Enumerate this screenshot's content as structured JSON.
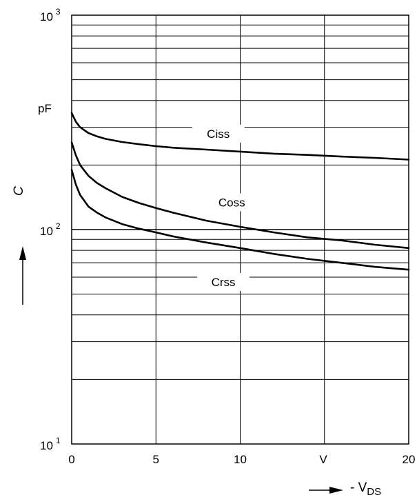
{
  "chart_data": {
    "type": "line",
    "xlabel": "- V",
    "xlabel_sub": "DS",
    "xunit": "V",
    "ylabel": "C",
    "yunit": "pF",
    "yscale": "log",
    "xlim": [
      0,
      20
    ],
    "ylim": [
      10,
      1000
    ],
    "grid": true,
    "legend": "none",
    "x_ticks": [
      "0",
      "5",
      "10",
      "20"
    ],
    "y_ticks": [
      {
        "base": "10",
        "exp": "1"
      },
      {
        "base": "10",
        "exp": "2"
      },
      {
        "base": "10",
        "exp": "3"
      }
    ],
    "series": [
      {
        "name": "Ciss",
        "label_at": [
          8.7,
          280
        ],
        "x": [
          0,
          0.25,
          0.5,
          1,
          1.5,
          2,
          3,
          4,
          5,
          6,
          8,
          10,
          12,
          14,
          16,
          18,
          20
        ],
        "y": [
          350,
          318,
          300,
          282,
          272,
          265,
          256,
          250,
          245,
          241,
          236,
          231,
          226,
          223,
          219,
          216,
          212
        ]
      },
      {
        "name": "Coss",
        "label_at": [
          9.5,
          134
        ],
        "x": [
          0,
          0.25,
          0.5,
          1,
          1.5,
          2,
          3,
          4,
          5,
          6,
          8,
          10,
          12,
          14,
          16,
          18,
          20
        ],
        "y": [
          255,
          222,
          200,
          178,
          165,
          156,
          142,
          133,
          126,
          120,
          110,
          103,
          97,
          92,
          89,
          85,
          82
        ]
      },
      {
        "name": "Crss",
        "label_at": [
          9.0,
          57
        ],
        "x": [
          0,
          0.25,
          0.5,
          1,
          1.5,
          2,
          3,
          4,
          5,
          6,
          8,
          10,
          12,
          14,
          16,
          18,
          20
        ],
        "y": [
          190,
          162,
          145,
          128,
          120,
          114,
          106,
          101,
          97,
          93,
          87,
          82,
          77,
          73,
          70,
          67,
          65
        ]
      }
    ]
  }
}
